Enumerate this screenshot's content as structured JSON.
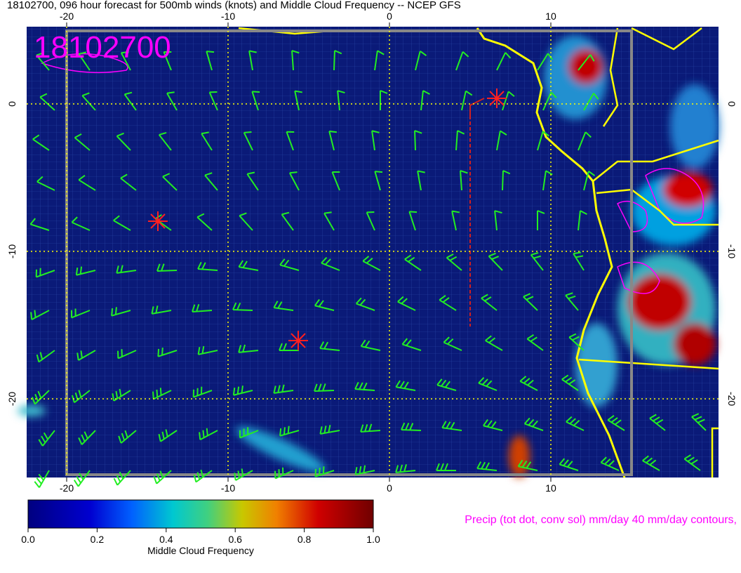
{
  "title": "18102700, 096 hour forecast for 500mb winds (knots) and Middle Cloud Frequency -- NCEP GFS",
  "stamp": "18102700",
  "map": {
    "lon_ticks": [
      -20,
      -10,
      0,
      10
    ],
    "lat_ticks": [
      0,
      -10,
      -20
    ]
  },
  "colorbar": {
    "label": "Middle Cloud Frequency",
    "ticks": [
      {
        "value": 0,
        "label": "0.0"
      },
      {
        "value": 0.2,
        "label": "0.2"
      },
      {
        "value": 0.4,
        "label": "0.4"
      },
      {
        "value": 0.6,
        "label": "0.6"
      },
      {
        "value": 0.8,
        "label": "0.8"
      },
      {
        "value": 1,
        "label": "1.0"
      }
    ]
  },
  "precip_note": "Precip (tot dot, conv sol) mm/day 40 mm/day contours,"
}
